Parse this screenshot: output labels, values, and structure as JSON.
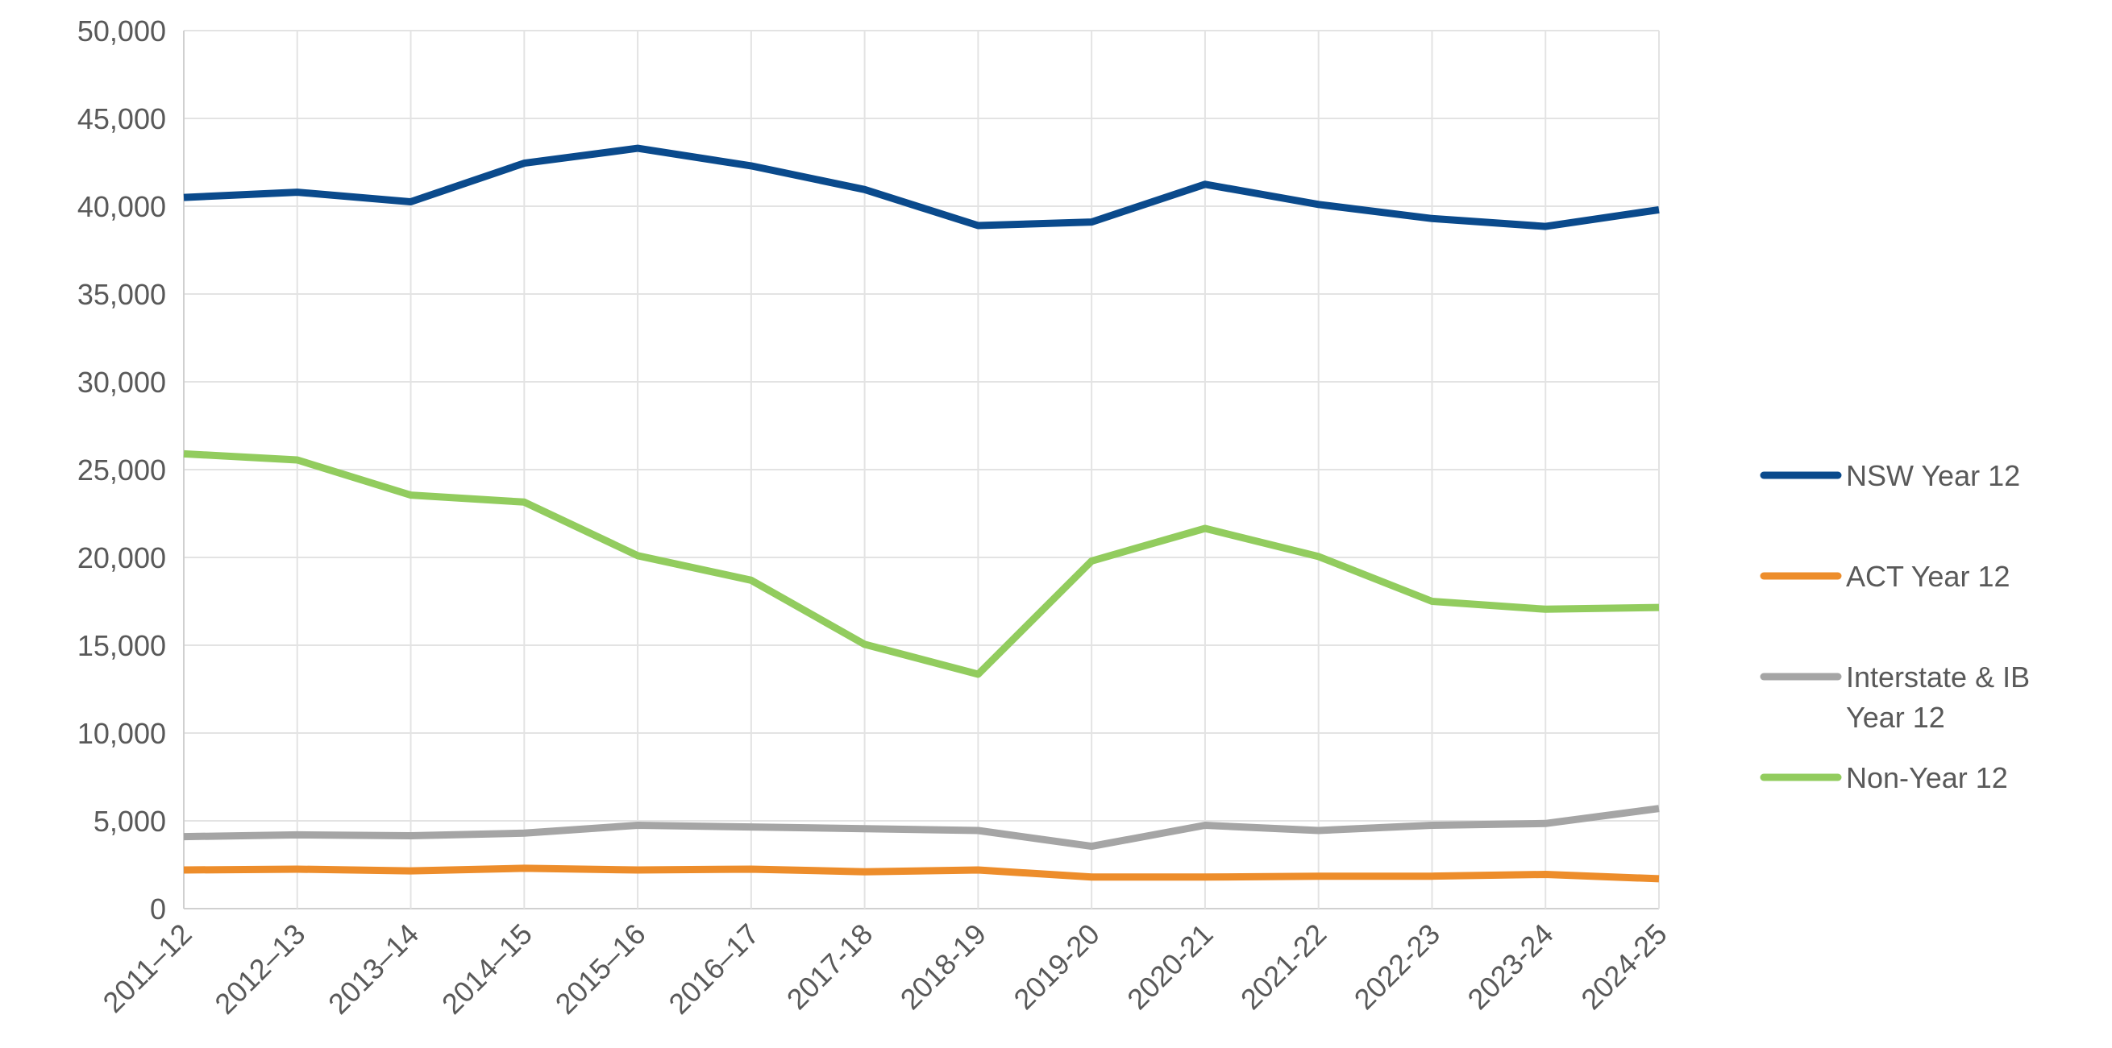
{
  "chart_data": {
    "type": "line",
    "title": "",
    "xlabel": "",
    "ylabel": "",
    "categories": [
      "2011–12",
      "2012–13",
      "2013–14",
      "2014–15",
      "2015–16",
      "2016–17",
      "2017-18",
      "2018-19",
      "2019-20",
      "2020-21",
      "2021-22",
      "2022-23",
      "2023-24",
      "2024-25"
    ],
    "ylim": [
      0,
      50000
    ],
    "y_ticks": [
      0,
      5000,
      10000,
      15000,
      20000,
      25000,
      30000,
      35000,
      40000,
      45000,
      50000
    ],
    "y_tick_labels": [
      "0",
      "5,000",
      "10,000",
      "15,000",
      "20,000",
      "25,000",
      "30,000",
      "35,000",
      "40,000",
      "45,000",
      "50,000"
    ],
    "grid": true,
    "legend_position": "right",
    "series": [
      {
        "name": "NSW Year 12",
        "color": "#0a4a8c",
        "values": [
          40500,
          40800,
          40250,
          42450,
          43300,
          42300,
          40950,
          38900,
          39100,
          41250,
          40100,
          39300,
          38850,
          39800
        ]
      },
      {
        "name": "ACT Year 12",
        "color": "#ed8d2b",
        "values": [
          2200,
          2250,
          2150,
          2300,
          2200,
          2250,
          2100,
          2200,
          1800,
          1800,
          1850,
          1850,
          1950,
          1700
        ]
      },
      {
        "name": "Interstate & IB Year 12",
        "color": "#a5a5a5",
        "values": [
          4100,
          4200,
          4150,
          4300,
          4750,
          4650,
          4550,
          4450,
          3550,
          4750,
          4450,
          4750,
          4850,
          5700
        ]
      },
      {
        "name": "Non-Year 12",
        "color": "#92cc5e",
        "values": [
          25900,
          25550,
          23550,
          23150,
          20100,
          18700,
          15050,
          13350,
          19800,
          21650,
          20050,
          17500,
          17050,
          17150
        ]
      }
    ]
  }
}
